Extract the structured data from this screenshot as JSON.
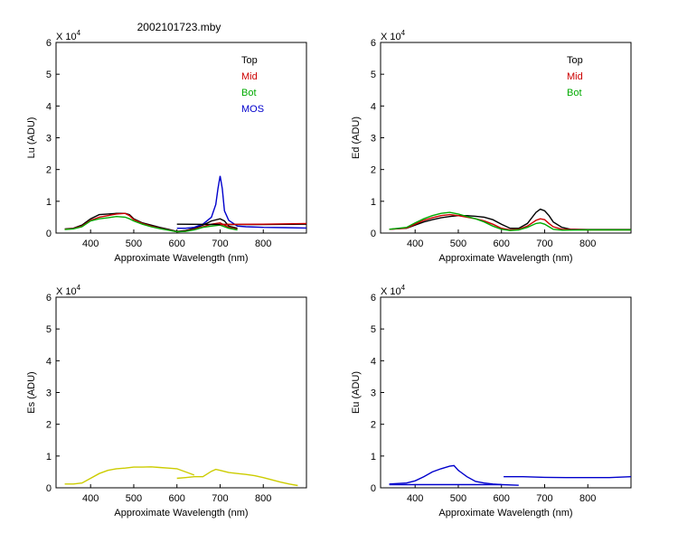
{
  "figure_title": "2002101723.mby",
  "chart_data": [
    {
      "type": "line",
      "id": "lu",
      "ylabel": "Lu (ADU)",
      "xlabel": "Approximate Wavelength (nm)",
      "xlim": [
        320,
        900
      ],
      "ylim": [
        0,
        6
      ],
      "y_multiplier_label": "X 10",
      "y_multiplier_exp": "4",
      "x_ticks": [
        400,
        500,
        600,
        700,
        800
      ],
      "y_ticks": [
        0,
        1,
        2,
        3,
        4,
        5,
        6
      ],
      "legend": [
        "Top",
        "Mid",
        "Bot",
        "MOS"
      ],
      "series": [
        {
          "name": "Top",
          "color": "#000000",
          "points": [
            [
              340,
              0.13
            ],
            [
              360,
              0.15
            ],
            [
              380,
              0.25
            ],
            [
              400,
              0.45
            ],
            [
              420,
              0.58
            ],
            [
              440,
              0.6
            ],
            [
              460,
              0.62
            ],
            [
              480,
              0.62
            ],
            [
              490,
              0.58
            ],
            [
              500,
              0.45
            ],
            [
              520,
              0.32
            ],
            [
              540,
              0.25
            ],
            [
              560,
              0.18
            ],
            [
              580,
              0.12
            ],
            [
              600,
              0.05
            ],
            [
              620,
              0.08
            ],
            [
              640,
              0.15
            ],
            [
              660,
              0.25
            ],
            [
              680,
              0.38
            ],
            [
              700,
              0.45
            ],
            [
              710,
              0.38
            ],
            [
              720,
              0.22
            ],
            [
              740,
              0.15
            ]
          ]
        },
        {
          "name": "Mid",
          "color": "#cc0000",
          "points": [
            [
              340,
              0.12
            ],
            [
              360,
              0.14
            ],
            [
              380,
              0.22
            ],
            [
              400,
              0.4
            ],
            [
              420,
              0.5
            ],
            [
              440,
              0.55
            ],
            [
              460,
              0.6
            ],
            [
              480,
              0.62
            ],
            [
              490,
              0.55
            ],
            [
              500,
              0.42
            ],
            [
              520,
              0.3
            ],
            [
              540,
              0.22
            ],
            [
              560,
              0.15
            ],
            [
              580,
              0.1
            ],
            [
              600,
              0.04
            ],
            [
              620,
              0.06
            ],
            [
              640,
              0.12
            ],
            [
              660,
              0.2
            ],
            [
              680,
              0.28
            ],
            [
              700,
              0.32
            ],
            [
              720,
              0.18
            ],
            [
              740,
              0.12
            ]
          ]
        },
        {
          "name": "Bot",
          "color": "#00aa00",
          "points": [
            [
              340,
              0.11
            ],
            [
              360,
              0.13
            ],
            [
              380,
              0.2
            ],
            [
              400,
              0.38
            ],
            [
              420,
              0.45
            ],
            [
              440,
              0.48
            ],
            [
              460,
              0.52
            ],
            [
              480,
              0.5
            ],
            [
              490,
              0.45
            ],
            [
              500,
              0.38
            ],
            [
              520,
              0.28
            ],
            [
              540,
              0.2
            ],
            [
              560,
              0.14
            ],
            [
              580,
              0.09
            ],
            [
              600,
              0.04
            ],
            [
              620,
              0.05
            ],
            [
              640,
              0.1
            ],
            [
              660,
              0.18
            ],
            [
              680,
              0.22
            ],
            [
              700,
              0.25
            ],
            [
              720,
              0.15
            ],
            [
              740,
              0.1
            ]
          ]
        },
        {
          "name": "MOS",
          "color": "#0000cc",
          "points": [
            [
              600,
              0.15
            ],
            [
              620,
              0.15
            ],
            [
              640,
              0.18
            ],
            [
              660,
              0.28
            ],
            [
              680,
              0.5
            ],
            [
              690,
              0.9
            ],
            [
              695,
              1.4
            ],
            [
              700,
              1.8
            ],
            [
              705,
              1.4
            ],
            [
              710,
              0.7
            ],
            [
              720,
              0.4
            ],
            [
              740,
              0.22
            ],
            [
              760,
              0.2
            ],
            [
              800,
              0.18
            ],
            [
              850,
              0.17
            ],
            [
              900,
              0.16
            ]
          ]
        },
        {
          "name": "",
          "color": "#000000",
          "points": [
            [
              600,
              0.28
            ],
            [
              700,
              0.27
            ],
            [
              800,
              0.27
            ],
            [
              900,
              0.28
            ]
          ]
        },
        {
          "name": "",
          "color": "#cc0000",
          "points": [
            [
              700,
              0.27
            ],
            [
              800,
              0.28
            ],
            [
              900,
              0.3
            ]
          ]
        }
      ]
    },
    {
      "type": "line",
      "id": "ed",
      "ylabel": "Ed  (ADU)",
      "xlabel": "Approximate Wavelength (nm)",
      "xlim": [
        320,
        900
      ],
      "ylim": [
        0,
        6
      ],
      "y_multiplier_label": "X 10",
      "y_multiplier_exp": "4",
      "x_ticks": [
        400,
        500,
        600,
        700,
        800
      ],
      "y_ticks": [
        0,
        1,
        2,
        3,
        4,
        5,
        6
      ],
      "legend": [
        "Top",
        "Mid",
        "Bot"
      ],
      "series": [
        {
          "name": "Top",
          "color": "#000000",
          "points": [
            [
              340,
              0.12
            ],
            [
              380,
              0.15
            ],
            [
              400,
              0.25
            ],
            [
              420,
              0.35
            ],
            [
              440,
              0.42
            ],
            [
              460,
              0.48
            ],
            [
              480,
              0.52
            ],
            [
              500,
              0.55
            ],
            [
              520,
              0.55
            ],
            [
              540,
              0.53
            ],
            [
              560,
              0.5
            ],
            [
              580,
              0.42
            ],
            [
              600,
              0.28
            ],
            [
              620,
              0.15
            ],
            [
              640,
              0.15
            ],
            [
              660,
              0.3
            ],
            [
              680,
              0.65
            ],
            [
              690,
              0.75
            ],
            [
              700,
              0.7
            ],
            [
              710,
              0.55
            ],
            [
              720,
              0.35
            ],
            [
              740,
              0.18
            ],
            [
              760,
              0.12
            ],
            [
              800,
              0.11
            ],
            [
              900,
              0.11
            ]
          ]
        },
        {
          "name": "Mid",
          "color": "#cc0000",
          "points": [
            [
              340,
              0.12
            ],
            [
              380,
              0.16
            ],
            [
              400,
              0.28
            ],
            [
              420,
              0.4
            ],
            [
              440,
              0.48
            ],
            [
              460,
              0.55
            ],
            [
              480,
              0.58
            ],
            [
              500,
              0.55
            ],
            [
              520,
              0.5
            ],
            [
              540,
              0.45
            ],
            [
              560,
              0.38
            ],
            [
              580,
              0.28
            ],
            [
              600,
              0.15
            ],
            [
              620,
              0.1
            ],
            [
              640,
              0.12
            ],
            [
              660,
              0.22
            ],
            [
              680,
              0.4
            ],
            [
              690,
              0.45
            ],
            [
              700,
              0.42
            ],
            [
              710,
              0.3
            ],
            [
              720,
              0.2
            ],
            [
              740,
              0.12
            ],
            [
              800,
              0.1
            ],
            [
              900,
              0.1
            ]
          ]
        },
        {
          "name": "Bot",
          "color": "#00aa00",
          "points": [
            [
              340,
              0.12
            ],
            [
              380,
              0.18
            ],
            [
              400,
              0.32
            ],
            [
              420,
              0.45
            ],
            [
              440,
              0.55
            ],
            [
              460,
              0.62
            ],
            [
              480,
              0.65
            ],
            [
              500,
              0.6
            ],
            [
              520,
              0.52
            ],
            [
              540,
              0.45
            ],
            [
              560,
              0.35
            ],
            [
              580,
              0.22
            ],
            [
              600,
              0.12
            ],
            [
              620,
              0.08
            ],
            [
              640,
              0.1
            ],
            [
              660,
              0.18
            ],
            [
              680,
              0.3
            ],
            [
              690,
              0.32
            ],
            [
              700,
              0.28
            ],
            [
              710,
              0.2
            ],
            [
              720,
              0.12
            ],
            [
              740,
              0.09
            ],
            [
              800,
              0.1
            ],
            [
              900,
              0.1
            ]
          ]
        }
      ]
    },
    {
      "type": "line",
      "id": "es",
      "ylabel": "Es  (ADU)",
      "xlabel": "Approximate Wavelength (nm)",
      "xlim": [
        320,
        900
      ],
      "ylim": [
        0,
        6
      ],
      "y_multiplier_label": "X 10",
      "y_multiplier_exp": "4",
      "x_ticks": [
        400,
        500,
        600,
        700,
        800
      ],
      "y_ticks": [
        0,
        1,
        2,
        3,
        4,
        5,
        6
      ],
      "legend": [],
      "series": [
        {
          "name": "",
          "color": "#cccc00",
          "points": [
            [
              340,
              0.12
            ],
            [
              360,
              0.12
            ],
            [
              380,
              0.15
            ],
            [
              400,
              0.3
            ],
            [
              420,
              0.45
            ],
            [
              440,
              0.55
            ],
            [
              460,
              0.6
            ],
            [
              480,
              0.62
            ],
            [
              500,
              0.65
            ],
            [
              520,
              0.65
            ],
            [
              540,
              0.66
            ],
            [
              560,
              0.64
            ],
            [
              580,
              0.62
            ],
            [
              600,
              0.6
            ],
            [
              620,
              0.5
            ],
            [
              640,
              0.4
            ]
          ]
        },
        {
          "name": "",
          "color": "#cccc00",
          "points": [
            [
              600,
              0.3
            ],
            [
              620,
              0.32
            ],
            [
              640,
              0.35
            ],
            [
              660,
              0.35
            ],
            [
              680,
              0.52
            ],
            [
              690,
              0.58
            ],
            [
              700,
              0.55
            ],
            [
              720,
              0.48
            ],
            [
              740,
              0.45
            ],
            [
              760,
              0.42
            ],
            [
              780,
              0.38
            ],
            [
              800,
              0.32
            ],
            [
              820,
              0.25
            ],
            [
              840,
              0.18
            ],
            [
              860,
              0.12
            ],
            [
              880,
              0.07
            ]
          ]
        }
      ]
    },
    {
      "type": "line",
      "id": "eu",
      "ylabel": "Eu  (ADU)",
      "xlabel": "Approximate Wavelength (nm)",
      "xlim": [
        320,
        900
      ],
      "ylim": [
        0,
        6
      ],
      "y_multiplier_label": "X 10",
      "y_multiplier_exp": "4",
      "x_ticks": [
        400,
        500,
        600,
        700,
        800
      ],
      "y_ticks": [
        0,
        1,
        2,
        3,
        4,
        5,
        6
      ],
      "legend": [],
      "series": [
        {
          "name": "",
          "color": "#0000cc",
          "points": [
            [
              340,
              0.12
            ],
            [
              380,
              0.15
            ],
            [
              400,
              0.22
            ],
            [
              420,
              0.35
            ],
            [
              440,
              0.5
            ],
            [
              460,
              0.6
            ],
            [
              480,
              0.68
            ],
            [
              490,
              0.7
            ],
            [
              500,
              0.55
            ],
            [
              520,
              0.35
            ],
            [
              540,
              0.2
            ],
            [
              560,
              0.15
            ],
            [
              580,
              0.12
            ],
            [
              600,
              0.1
            ]
          ]
        },
        {
          "name": "",
          "color": "#0000cc",
          "points": [
            [
              340,
              0.1
            ],
            [
              400,
              0.1
            ],
            [
              500,
              0.1
            ],
            [
              600,
              0.1
            ],
            [
              640,
              0.08
            ]
          ]
        },
        {
          "name": "",
          "color": "#0000cc",
          "points": [
            [
              605,
              0.35
            ],
            [
              650,
              0.35
            ],
            [
              700,
              0.33
            ],
            [
              750,
              0.32
            ],
            [
              800,
              0.32
            ],
            [
              850,
              0.32
            ],
            [
              900,
              0.35
            ]
          ]
        }
      ]
    }
  ]
}
